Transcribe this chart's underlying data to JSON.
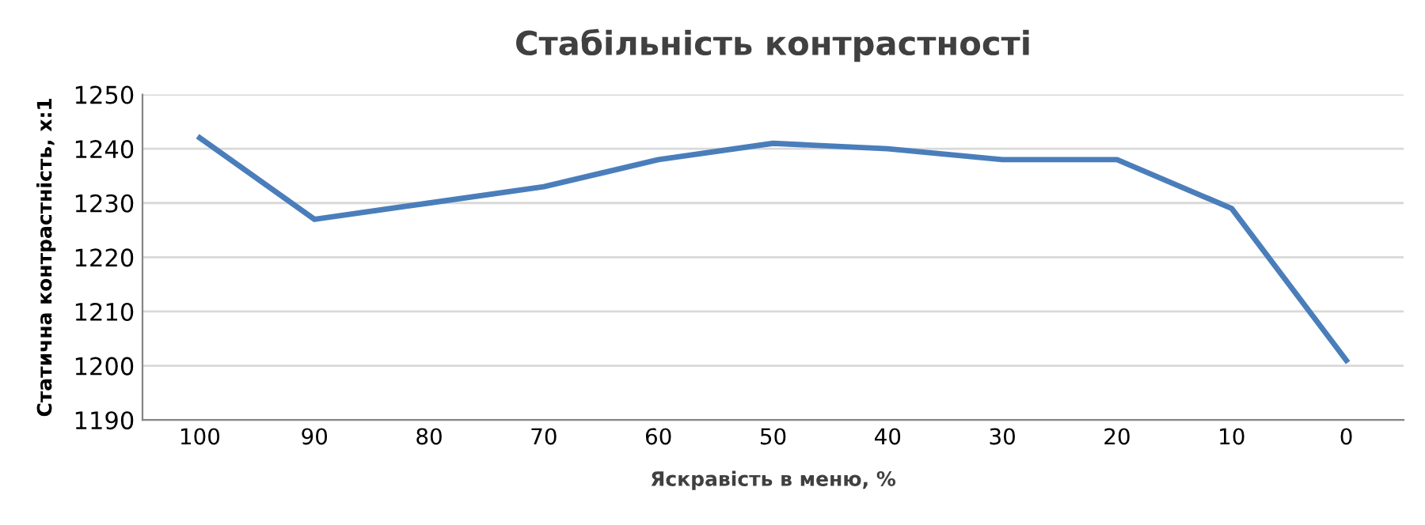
{
  "chart_data": {
    "type": "line",
    "title": "Стабільність контрастності",
    "xlabel": "Яскравість в меню, %",
    "ylabel": "Статична контрастність, x:1",
    "categories": [
      "100",
      "90",
      "80",
      "70",
      "60",
      "50",
      "40",
      "30",
      "20",
      "10",
      "0"
    ],
    "series": [
      {
        "color": "#4a7ebb",
        "values": [
          1242,
          1227,
          1230,
          1233,
          1238,
          1241,
          1240,
          1238,
          1238,
          1229,
          1201
        ]
      }
    ],
    "ylim": [
      1190,
      1250
    ],
    "yticks": [
      1190,
      1200,
      1210,
      1220,
      1230,
      1240,
      1250
    ],
    "grid": "y",
    "marker": "none",
    "line_style": "solid"
  }
}
